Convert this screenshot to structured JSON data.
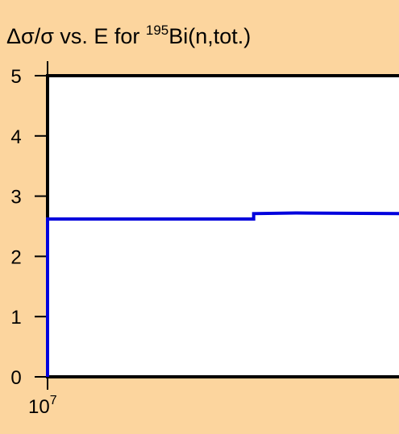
{
  "colors": {
    "background": "#fcd59e",
    "plot_area": "#ffffff",
    "axis": "#000000",
    "series": "#0000dd"
  },
  "chart_data": {
    "type": "line",
    "title": {
      "prefix": "Δσ/σ vs. E for ",
      "mass_number": "195",
      "suffix": "Bi(n,tot.)"
    },
    "xlabel": "",
    "ylabel": "",
    "x_scale": "log",
    "x_tick_labels": [
      {
        "base": "10",
        "exponent": "7",
        "value": 10000000
      }
    ],
    "y_ticks": [
      0,
      1,
      2,
      3,
      4,
      5
    ],
    "ylim": [
      0,
      5
    ],
    "grid": false,
    "series": [
      {
        "step": true,
        "points": [
          {
            "x": 10000000,
            "y": 0
          },
          {
            "x": 10000000,
            "y": 2.62
          },
          {
            "x": 14000000,
            "y": 2.62
          },
          {
            "x": 14000000,
            "y": 2.71
          },
          {
            "x": 15000000,
            "y": 2.72
          },
          {
            "x": 18000000,
            "y": 2.71
          }
        ]
      }
    ]
  }
}
